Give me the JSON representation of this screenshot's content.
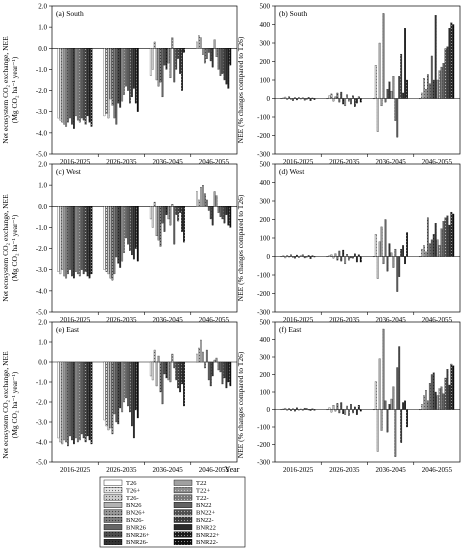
{
  "figure": {
    "periods": [
      "2016-2025",
      "2026-2035",
      "2036-2045",
      "2046-2055"
    ],
    "x_axis_label": "Year",
    "left_ylabel_lines": [
      "Net ecosystem CO₂ exchange, NEE",
      "(Mg CO₂ ha⁻¹ year⁻¹)"
    ],
    "right_ylabel": "NEE (% changes compared to T26)",
    "legend": {
      "treatments": [
        "T26",
        "T26+",
        "T26-",
        "BN26",
        "BN26+",
        "BN26-",
        "BNR26",
        "BNR26+",
        "BNR26-",
        "T22",
        "T22+",
        "T22-",
        "BN22",
        "BN22+",
        "BN22-",
        "BNR22",
        "BNR22+",
        "BNR22-"
      ],
      "fills": [
        "#ffffff",
        "#e6e6e6",
        "#cccccc",
        "#b3b3b3",
        "#999999",
        "#808080",
        "#666666",
        "#4d4d4d",
        "#333333",
        "#a0a0a0",
        "#8c8c8c",
        "#777777",
        "#626262",
        "#4e4e4e",
        "#3a3a3a",
        "#2a2a2a",
        "#1a1a1a",
        "#0d0d0d"
      ]
    }
  },
  "chart_data": [
    {
      "type": "bar",
      "title": "(a) South",
      "ylabel": "Net ecosystem CO₂ exchange, NEE (Mg CO₂ ha⁻¹ year⁻¹)",
      "ylim": [
        -5.0,
        2.0
      ],
      "yticks": [
        "-5.0",
        "-4.0",
        "-3.0",
        "-2.0",
        "-1.0",
        "0.0",
        "1.0",
        "2.0"
      ],
      "categories": [
        "2016-2025",
        "2026-2035",
        "2036-2045",
        "2046-2055"
      ],
      "values": [
        [
          -3.3,
          -3.4,
          -3.5,
          -3.6,
          -3.7,
          -3.5,
          -3.3,
          -3.6,
          -3.8,
          -3.2,
          -3.4,
          -3.5,
          -3.3,
          -3.4,
          -3.6,
          -3.2,
          -3.5,
          -3.7
        ],
        [
          -3.2,
          -3.1,
          -3.3,
          -2.4,
          -2.7,
          -3.3,
          -3.6,
          -2.6,
          -2.8,
          -2.5,
          -2.2,
          -1.8,
          -2.0,
          -2.6,
          -2.3,
          -1.9,
          -2.6,
          -3.0
        ],
        [
          -1.3,
          -1.0,
          0.3,
          -1.5,
          -1.8,
          -1.6,
          -2.3,
          -0.8,
          -1.0,
          -0.7,
          -1.4,
          0.5,
          -1.6,
          -1.0,
          -0.5,
          -1.2,
          -2.0,
          -0.2
        ],
        [
          0.3,
          0.6,
          0.5,
          -0.3,
          -0.7,
          -0.5,
          -0.2,
          -0.6,
          -0.9,
          0.4,
          -0.4,
          -1.0,
          -1.3,
          -1.2,
          -1.5,
          -1.7,
          -1.9,
          -0.8
        ]
      ]
    },
    {
      "type": "bar",
      "title": "(b) South",
      "ylabel": "NEE (% changes compared to T26)",
      "ylim": [
        -300,
        500
      ],
      "yticks": [
        "-300",
        "-200",
        "-100",
        "0",
        "100",
        "200",
        "300",
        "400",
        "500"
      ],
      "categories": [
        "2016-2025",
        "2026-2035",
        "2036-2045",
        "2046-2055"
      ],
      "values": [
        [
          0,
          3,
          8,
          -6,
          10,
          -5,
          -12,
          5,
          -8,
          6,
          -3,
          4,
          -10,
          -5,
          6,
          -12,
          3,
          -6
        ],
        [
          0,
          15,
          25,
          -15,
          10,
          30,
          -20,
          35,
          -30,
          -40,
          20,
          -15,
          -30,
          15,
          -45,
          -25,
          10,
          -20
        ],
        [
          0,
          180,
          -180,
          300,
          -40,
          460,
          -20,
          50,
          90,
          40,
          120,
          -120,
          -210,
          120,
          240,
          30,
          380,
          100
        ],
        [
          0,
          30,
          110,
          50,
          130,
          80,
          230,
          100,
          450,
          100,
          150,
          170,
          190,
          270,
          280,
          380,
          410,
          400
        ]
      ]
    },
    {
      "type": "bar",
      "title": "(c) West",
      "ylabel": "Net ecosystem CO₂ exchange, NEE (Mg CO₂ ha⁻¹ year⁻¹)",
      "ylim": [
        -5.0,
        2.0
      ],
      "yticks": [
        "-5.0",
        "-4.0",
        "-3.0",
        "-2.0",
        "-1.0",
        "0.0",
        "1.0",
        "2.0"
      ],
      "categories": [
        "2016-2025",
        "2026-2035",
        "2036-2045",
        "2046-2055"
      ],
      "values": [
        [
          -3.1,
          -3.2,
          -3.0,
          -3.3,
          -3.4,
          -3.2,
          -3.0,
          -3.3,
          -3.4,
          -3.1,
          -3.2,
          -3.3,
          -3.0,
          -3.2,
          -3.1,
          -3.3,
          -3.4,
          -3.2
        ],
        [
          -3.0,
          -3.1,
          -3.2,
          -3.4,
          -3.5,
          -3.2,
          -2.4,
          -2.7,
          -2.9,
          -2.6,
          -2.2,
          -1.5,
          -1.8,
          -2.1,
          -2.3,
          -2.5,
          -2.0,
          -2.6
        ],
        [
          -0.6,
          -1.0,
          0.2,
          -1.4,
          -1.6,
          -1.9,
          -0.8,
          -1.2,
          -0.4,
          -0.6,
          -0.9,
          0.1,
          -1.8,
          -0.4,
          -0.7,
          -0.3,
          -1.2,
          -1.7
        ],
        [
          0.7,
          0.3,
          0.9,
          1.0,
          0.6,
          0.3,
          -0.2,
          -0.6,
          -0.9,
          0.7,
          0.5,
          -0.3,
          -0.5,
          -0.6,
          -0.8,
          -0.4,
          -0.9,
          -1.0
        ]
      ]
    },
    {
      "type": "bar",
      "title": "(d) West",
      "ylabel": "NEE (% changes compared to T26)",
      "ylim": [
        -300,
        500
      ],
      "yticks": [
        "-300",
        "-200",
        "-100",
        "0",
        "100",
        "200",
        "300",
        "400",
        "500"
      ],
      "categories": [
        "2016-2025",
        "2026-2035",
        "2036-2045",
        "2046-2055"
      ],
      "values": [
        [
          0,
          4,
          -8,
          6,
          -3,
          10,
          -5,
          -10,
          8,
          -6,
          4,
          10,
          -8,
          -4,
          6,
          -12,
          5,
          -3
        ],
        [
          0,
          5,
          10,
          -10,
          15,
          -20,
          30,
          -25,
          35,
          -40,
          12,
          -20,
          -8,
          -10,
          15,
          -30,
          10,
          -30
        ],
        [
          0,
          120,
          -120,
          80,
          160,
          -40,
          200,
          -80,
          70,
          20,
          -60,
          40,
          -190,
          -110,
          40,
          60,
          -40,
          130
        ],
        [
          0,
          40,
          60,
          25,
          210,
          70,
          90,
          120,
          180,
          90,
          60,
          150,
          190,
          210,
          220,
          170,
          240,
          230
        ]
      ]
    },
    {
      "type": "bar",
      "title": "(e) East",
      "ylabel": "Net ecosystem CO₂ exchange, NEE (Mg CO₂ ha⁻¹ year⁻¹)",
      "ylim": [
        -5.0,
        2.0
      ],
      "yticks": [
        "-5.0",
        "-4.0",
        "-3.0",
        "-2.0",
        "-1.0",
        "0.0",
        "1.0",
        "2.0"
      ],
      "categories": [
        "2016-2025",
        "2026-2035",
        "2036-2045",
        "2046-2055"
      ],
      "values": [
        [
          -3.8,
          -4.0,
          -4.1,
          -3.9,
          -4.0,
          -4.2,
          -3.7,
          -3.9,
          -4.1,
          -3.8,
          -4.0,
          -3.9,
          -3.6,
          -3.8,
          -4.0,
          -3.7,
          -3.9,
          -4.1
        ],
        [
          -2.9,
          -3.2,
          -3.4,
          -3.3,
          -3.6,
          -2.6,
          -3.0,
          -3.1,
          -2.3,
          -2.5,
          -2.0,
          -1.8,
          -2.2,
          -2.5,
          -3.2,
          -3.8,
          -2.4,
          -2.8
        ],
        [
          -0.7,
          -0.9,
          0.6,
          -1.2,
          0.3,
          -1.5,
          -2.1,
          -0.6,
          -0.8,
          -0.9,
          -1.0,
          0.4,
          -0.3,
          -0.9,
          -1.3,
          -1.5,
          -1.1,
          -2.2
        ],
        [
          0.4,
          0.7,
          1.1,
          0.5,
          -0.3,
          0.6,
          -0.9,
          -1.2,
          -0.7,
          0.1,
          0.2,
          -0.4,
          -0.5,
          -1.1,
          -0.8,
          -1.3,
          -1.0,
          -1.2
        ]
      ]
    },
    {
      "type": "bar",
      "title": "(f) East",
      "ylabel": "NEE (% changes compared to T26)",
      "ylim": [
        -300,
        500
      ],
      "yticks": [
        "-300",
        "-200",
        "-100",
        "0",
        "100",
        "200",
        "300",
        "400",
        "500"
      ],
      "categories": [
        "2016-2025",
        "2026-2035",
        "2036-2045",
        "2046-2055"
      ],
      "values": [
        [
          0,
          3,
          8,
          -5,
          6,
          -8,
          5,
          -10,
          10,
          -4,
          3,
          -5,
          8,
          6,
          -3,
          -6,
          4,
          -5
        ],
        [
          0,
          10,
          -15,
          25,
          -10,
          35,
          -20,
          40,
          -25,
          -30,
          20,
          -35,
          30,
          -20,
          15,
          -30,
          25,
          -10
        ],
        [
          0,
          160,
          -240,
          290,
          -120,
          460,
          50,
          -130,
          30,
          60,
          130,
          -270,
          240,
          360,
          -190,
          40,
          50,
          -100
        ],
        [
          0,
          30,
          80,
          110,
          50,
          150,
          200,
          210,
          100,
          80,
          120,
          130,
          90,
          180,
          230,
          140,
          260,
          250
        ]
      ]
    }
  ]
}
